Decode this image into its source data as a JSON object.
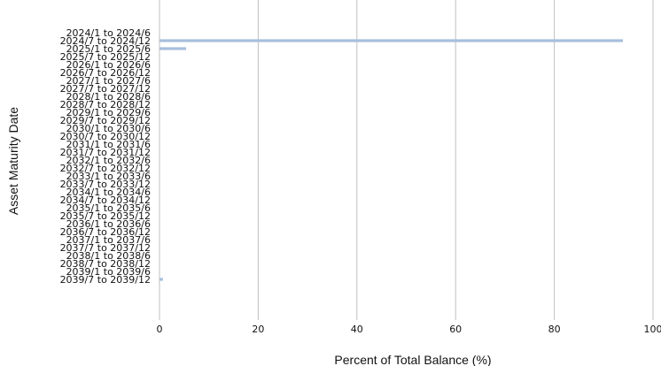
{
  "chart_data": {
    "type": "bar",
    "orientation": "horizontal",
    "title": "",
    "xlabel": "Percent of Total Balance (%)",
    "ylabel": "Asset Maturity Date",
    "categories": [
      "2024/1 to 2024/6",
      "2024/7 to 2024/12",
      "2025/1 to 2025/6",
      "2025/7 to 2025/12",
      "2026/1 to 2026/6",
      "2026/7 to 2026/12",
      "2027/1 to 2027/6",
      "2027/7 to 2027/12",
      "2028/1 to 2028/6",
      "2028/7 to 2028/12",
      "2029/1 to 2029/6",
      "2029/7 to 2029/12",
      "2030/1 to 2030/6",
      "2030/7 to 2030/12",
      "2031/1 to 2031/6",
      "2031/7 to 2031/12",
      "2032/1 to 2032/6",
      "2032/7 to 2032/12",
      "2033/1 to 2033/6",
      "2033/7 to 2033/12",
      "2034/1 to 2034/6",
      "2034/7 to 2034/12",
      "2035/1 to 2035/6",
      "2035/7 to 2035/12",
      "2036/1 to 2036/6",
      "2036/7 to 2036/12",
      "2037/1 to 2037/6",
      "2037/7 to 2037/12",
      "2038/1 to 2038/6",
      "2038/7 to 2038/12",
      "2039/1 to 2039/6",
      "2039/7 to 2039/12"
    ],
    "values": [
      0,
      93.9,
      5.4,
      0,
      0,
      0,
      0,
      0,
      0,
      0,
      0,
      0,
      0,
      0,
      0,
      0,
      0,
      0,
      0,
      0,
      0,
      0,
      0,
      0,
      0,
      0,
      0,
      0,
      0,
      0,
      0,
      0.7
    ],
    "xlim": [
      0,
      100
    ],
    "xticks": [
      "0",
      "20",
      "40",
      "60",
      "80",
      "100"
    ],
    "grid": "vertical",
    "bar_color": "#a7bfdd"
  }
}
